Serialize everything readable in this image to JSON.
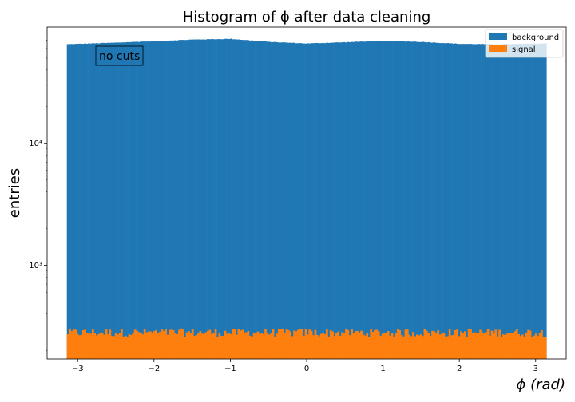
{
  "chart_data": {
    "type": "bar",
    "title": "Histogram of ϕ after data cleaning",
    "xlabel": "ϕ (rad)",
    "ylabel": "entries",
    "xlim": [
      -3.4,
      3.4
    ],
    "ylim": [
      170,
      90000
    ],
    "yscale": "log",
    "x_ticks": [
      -3,
      -2,
      -1,
      0,
      1,
      2,
      3
    ],
    "x_tick_labels": [
      "−3",
      "−2",
      "−1",
      "0",
      "1",
      "2",
      "3"
    ],
    "y_ticks": [
      1000,
      10000
    ],
    "y_tick_labels": [
      "10³",
      "10⁴"
    ],
    "bin_range": [
      -3.14159,
      3.14159
    ],
    "bins": 250,
    "legend_position": "top-right",
    "annotation": "no cuts",
    "series": [
      {
        "name": "background",
        "color": "#1f77b4",
        "profile_x": [
          -3.14,
          -2.5,
          -2.0,
          -1.5,
          -1.0,
          -0.5,
          0.0,
          0.5,
          1.0,
          1.5,
          2.0,
          2.5,
          3.14
        ],
        "profile_y": [
          65000,
          67000,
          69000,
          71000,
          72000,
          68000,
          66000,
          67500,
          69500,
          68000,
          65500,
          65000,
          66000
        ]
      },
      {
        "name": "signal",
        "color": "#ff7f0e",
        "profile_x": [
          -3.14,
          3.14
        ],
        "profile_y": [
          280,
          280
        ],
        "fluctuation": 0.08
      }
    ]
  }
}
